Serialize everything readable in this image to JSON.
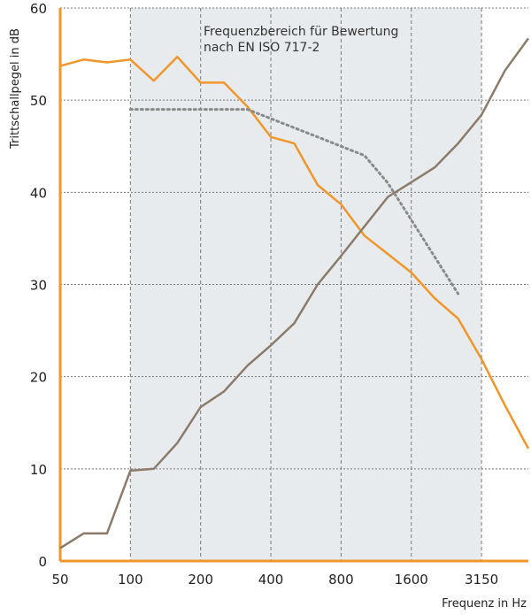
{
  "chart_data": {
    "type": "line",
    "xlabel": "Frequenz in Hz",
    "ylabel": "Trittschallpegel in dB",
    "ylim": [
      0,
      60
    ],
    "y_ticks": [
      0,
      10,
      20,
      30,
      40,
      50,
      60
    ],
    "x_points": [
      "50",
      "63",
      "80",
      "100",
      "125",
      "160",
      "200",
      "250",
      "315",
      "400",
      "500",
      "630",
      "800",
      "1000",
      "1250",
      "1600",
      "2000",
      "2500",
      "3150",
      "4000",
      "5000"
    ],
    "x_tick_labels": [
      {
        "label": "50",
        "at": "50"
      },
      {
        "label": "100",
        "at": "100"
      },
      {
        "label": "200",
        "at": "200"
      },
      {
        "label": "400",
        "at": "400"
      },
      {
        "label": "800",
        "at": "800"
      },
      {
        "label": "1600",
        "at": "1600"
      },
      {
        "label": "3150",
        "at": "3150"
      }
    ],
    "grid": true,
    "annotation": {
      "lines": [
        "Frequenzbereich für Bewertung",
        "nach EN ISO 717-2"
      ],
      "band_from": "100",
      "band_to": "3150"
    },
    "series": [
      {
        "color": "#f0962a",
        "style": "solid",
        "values": [
          53.7,
          54.4,
          54.1,
          54.4,
          52.1,
          54.7,
          51.9,
          51.9,
          49.3,
          46.0,
          45.3,
          40.8,
          38.7,
          35.3,
          33.3,
          31.3,
          28.5,
          26.3,
          21.9,
          16.9,
          12.2
        ]
      },
      {
        "color": "#8c7b6b",
        "style": "solid",
        "values": [
          1.4,
          3.0,
          3.0,
          9.8,
          10.0,
          12.8,
          16.7,
          18.4,
          21.2,
          23.4,
          25.8,
          30.0,
          33.1,
          36.3,
          39.5,
          41.1,
          42.7,
          45.3,
          48.4,
          53.2,
          56.7
        ]
      },
      {
        "color": "#8a8a8a",
        "style": "dotted",
        "x_from_index": 3,
        "values": [
          49.0,
          49.0,
          49.0,
          49.0,
          49.0,
          49.0,
          48.0,
          47.0,
          46.0,
          45.0,
          44.0,
          41.0,
          37.0,
          33.0,
          29.0
        ]
      }
    ]
  }
}
